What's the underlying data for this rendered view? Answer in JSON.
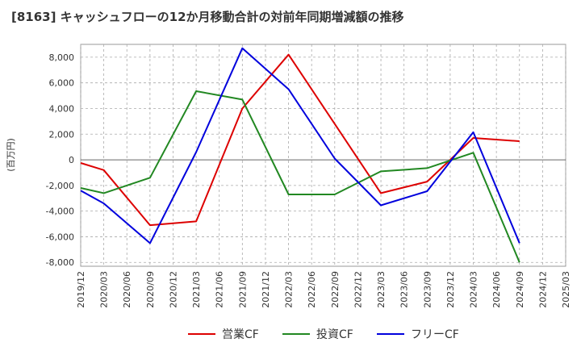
{
  "chart_data": {
    "type": "line",
    "title": "[8163]  キャッシュフローの12か月移動合計の対前年同期増減額の推移",
    "xlabel": "",
    "ylabel": "(百万円)",
    "ylim": [
      -8300,
      9000
    ],
    "yticks": [
      -8000,
      -6000,
      -4000,
      -2000,
      0,
      2000,
      4000,
      6000,
      8000
    ],
    "ytick_labels": [
      "-8,000",
      "-6,000",
      "-4,000",
      "-2,000",
      "0",
      "2,000",
      "4,000",
      "6,000",
      "8,000"
    ],
    "categories": [
      "2019/12",
      "2020/03",
      "2020/06",
      "2020/09",
      "2020/12",
      "2021/03",
      "2021/06",
      "2021/09",
      "2021/12",
      "2022/03",
      "2022/06",
      "2022/09",
      "2022/12",
      "2023/03",
      "2023/06",
      "2023/09",
      "2023/12",
      "2024/03",
      "2024/06",
      "2024/09",
      "2024/12",
      "2025/03"
    ],
    "grid": true,
    "legend_position": "bottom",
    "series": [
      {
        "name": "営業CF",
        "color": "#dd0000",
        "points": [
          {
            "x": "2019/12",
            "y": -250
          },
          {
            "x": "2020/03",
            "y": -800
          },
          {
            "x": "2020/09",
            "y": -5100
          },
          {
            "x": "2021/03",
            "y": -4800
          },
          {
            "x": "2021/09",
            "y": 4000
          },
          {
            "x": "2022/03",
            "y": 8200
          },
          {
            "x": "2022/09",
            "y": 2800
          },
          {
            "x": "2023/03",
            "y": -2600
          },
          {
            "x": "2023/09",
            "y": -1700
          },
          {
            "x": "2024/03",
            "y": 1700
          },
          {
            "x": "2024/09",
            "y": 1450
          }
        ]
      },
      {
        "name": "投資CF",
        "color": "#228822",
        "points": [
          {
            "x": "2019/12",
            "y": -2200
          },
          {
            "x": "2020/03",
            "y": -2600
          },
          {
            "x": "2020/09",
            "y": -1400
          },
          {
            "x": "2021/03",
            "y": 5350
          },
          {
            "x": "2021/09",
            "y": 4700
          },
          {
            "x": "2022/03",
            "y": -2700
          },
          {
            "x": "2022/09",
            "y": -2700
          },
          {
            "x": "2023/03",
            "y": -900
          },
          {
            "x": "2023/09",
            "y": -650
          },
          {
            "x": "2024/03",
            "y": 550
          },
          {
            "x": "2024/09",
            "y": -8000
          }
        ]
      },
      {
        "name": "フリーCF",
        "color": "#0000dd",
        "points": [
          {
            "x": "2019/12",
            "y": -2400
          },
          {
            "x": "2020/03",
            "y": -3400
          },
          {
            "x": "2020/09",
            "y": -6500
          },
          {
            "x": "2021/03",
            "y": 600
          },
          {
            "x": "2021/09",
            "y": 8700
          },
          {
            "x": "2022/03",
            "y": 5500
          },
          {
            "x": "2022/09",
            "y": 100
          },
          {
            "x": "2023/03",
            "y": -3550
          },
          {
            "x": "2023/09",
            "y": -2450
          },
          {
            "x": "2024/03",
            "y": 2150
          },
          {
            "x": "2024/09",
            "y": -6500
          }
        ]
      }
    ]
  }
}
